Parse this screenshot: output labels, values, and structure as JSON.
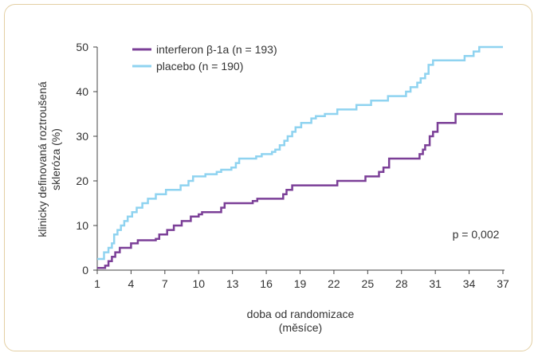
{
  "chart_data": {
    "type": "line",
    "step": true,
    "ylabel_lines": [
      "klinicky definovaná roztroušená",
      "skleróza (%)"
    ],
    "xlabel_lines": [
      "doba od randomizace",
      "(měsíce)"
    ],
    "xlim": [
      1,
      37
    ],
    "ylim": [
      0,
      50
    ],
    "xticks": [
      1,
      4,
      7,
      10,
      13,
      16,
      19,
      22,
      25,
      28,
      31,
      34,
      37
    ],
    "yticks": [
      0,
      10,
      20,
      30,
      40,
      50
    ],
    "legend_position": "top-left",
    "annotation": "p = 0,002",
    "series": [
      {
        "name": "interferon β-1a (n = 193)",
        "color": "#7b3f97",
        "points": [
          [
            1,
            0.5
          ],
          [
            1.7,
            1
          ],
          [
            2,
            2
          ],
          [
            2.3,
            3
          ],
          [
            2.6,
            4
          ],
          [
            3,
            5
          ],
          [
            4,
            6
          ],
          [
            4.6,
            6.7
          ],
          [
            6.2,
            7
          ],
          [
            6.5,
            8
          ],
          [
            7.2,
            9
          ],
          [
            7.8,
            10
          ],
          [
            8.5,
            11
          ],
          [
            9.3,
            12
          ],
          [
            10,
            12.5
          ],
          [
            10.3,
            13
          ],
          [
            12,
            14
          ],
          [
            12.3,
            15
          ],
          [
            14.8,
            15.5
          ],
          [
            15.2,
            16
          ],
          [
            17.5,
            17
          ],
          [
            17.8,
            18
          ],
          [
            18.3,
            19
          ],
          [
            22.3,
            20
          ],
          [
            24.8,
            21
          ],
          [
            26,
            22
          ],
          [
            26.4,
            23
          ],
          [
            26.9,
            25
          ],
          [
            29.6,
            26
          ],
          [
            29.9,
            27
          ],
          [
            30.1,
            28
          ],
          [
            30.5,
            30
          ],
          [
            30.8,
            31
          ],
          [
            31.2,
            33
          ],
          [
            32.8,
            35
          ],
          [
            37,
            35
          ]
        ]
      },
      {
        "name": "placebo (n = 190)",
        "color": "#8fd3f0",
        "points": [
          [
            1,
            2.5
          ],
          [
            1.6,
            4
          ],
          [
            2,
            5
          ],
          [
            2.3,
            6
          ],
          [
            2.5,
            8
          ],
          [
            2.8,
            9
          ],
          [
            3.1,
            10
          ],
          [
            3.4,
            11
          ],
          [
            3.7,
            12
          ],
          [
            4.1,
            13
          ],
          [
            4.5,
            14
          ],
          [
            5,
            15
          ],
          [
            5.5,
            16
          ],
          [
            6.2,
            17
          ],
          [
            7.1,
            18
          ],
          [
            8.4,
            19
          ],
          [
            9.1,
            20
          ],
          [
            9.5,
            21
          ],
          [
            10.6,
            21.5
          ],
          [
            11.6,
            22
          ],
          [
            12,
            22.5
          ],
          [
            12.9,
            23
          ],
          [
            13.3,
            24
          ],
          [
            13.6,
            25
          ],
          [
            15.1,
            25.5
          ],
          [
            15.6,
            26
          ],
          [
            16.5,
            26.5
          ],
          [
            16.8,
            27
          ],
          [
            17.2,
            28
          ],
          [
            17.6,
            29
          ],
          [
            17.9,
            30
          ],
          [
            18.3,
            31
          ],
          [
            18.6,
            32
          ],
          [
            19.1,
            33
          ],
          [
            20,
            34
          ],
          [
            20.4,
            34.5
          ],
          [
            21.2,
            35
          ],
          [
            22.3,
            36
          ],
          [
            24,
            37
          ],
          [
            25.3,
            38
          ],
          [
            26.8,
            39
          ],
          [
            28.4,
            40
          ],
          [
            28.8,
            41
          ],
          [
            29.4,
            42
          ],
          [
            29.7,
            43
          ],
          [
            30.1,
            44
          ],
          [
            30.4,
            46
          ],
          [
            30.8,
            47
          ],
          [
            33.6,
            48
          ],
          [
            34.4,
            49
          ],
          [
            34.9,
            50
          ],
          [
            37,
            50
          ]
        ]
      }
    ]
  }
}
